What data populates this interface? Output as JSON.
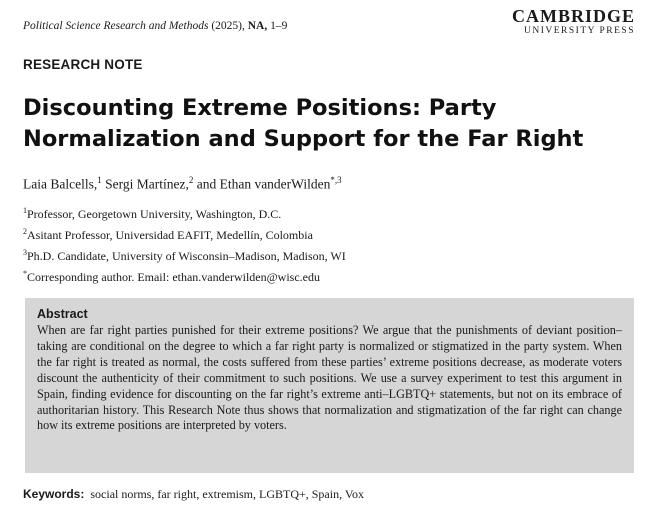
{
  "header": {
    "journal": "Political Science Research and Methods",
    "year": "(2025),",
    "volume": "NA,",
    "pages": "1–9",
    "publisher_name": "CAMBRIDGE",
    "publisher_sub": "UNIVERSITY PRESS"
  },
  "article_type": "RESEARCH NOTE",
  "title": "Discounting Extreme Positions: Party Normalization and Support for the Far Right",
  "authors": [
    {
      "name": "Laia Balcells,",
      "sup": "1"
    },
    {
      "name": "Sergi Martínez,",
      "sup": "2"
    },
    {
      "prefix": "and",
      "name": "Ethan vanderWilden",
      "sup": "*,3"
    }
  ],
  "affiliations": [
    {
      "sup": "1",
      "text": "Professor, Georgetown University, Washington, D.C."
    },
    {
      "sup": "2",
      "text": "Asitant Professor, Universidad EAFIT, Medellín, Colombia"
    },
    {
      "sup": "3",
      "text": "Ph.D. Candidate, University of Wisconsin–Madison, Madison, WI"
    },
    {
      "sup": "*",
      "text": "Corresponding author. Email: ethan.vanderwilden@wisc.edu"
    }
  ],
  "abstract": {
    "heading": "Abstract",
    "body": "When are far right parties punished for their extreme positions? We argue that the punishments of deviant position–taking are conditional on the degree to which a far right party is normalized or stigmatized in the party system. When the far right is treated as normal, the costs suffered from these parties’ extreme positions decrease, as moderate voters discount the authenticity of their commitment to such positions. We use a survey experiment to test this argument in Spain, finding evidence for discounting on the far right’s extreme anti–LGBTQ+ statements, but not on its embrace of authoritarian history. This Research Note thus shows that normalization and stigmatization of the far right can change how its extreme positions are interpreted by voters."
  },
  "keywords": {
    "label": "Keywords:",
    "text": "social norms, far right, extremism, LGBTQ+, Spain, Vox"
  }
}
